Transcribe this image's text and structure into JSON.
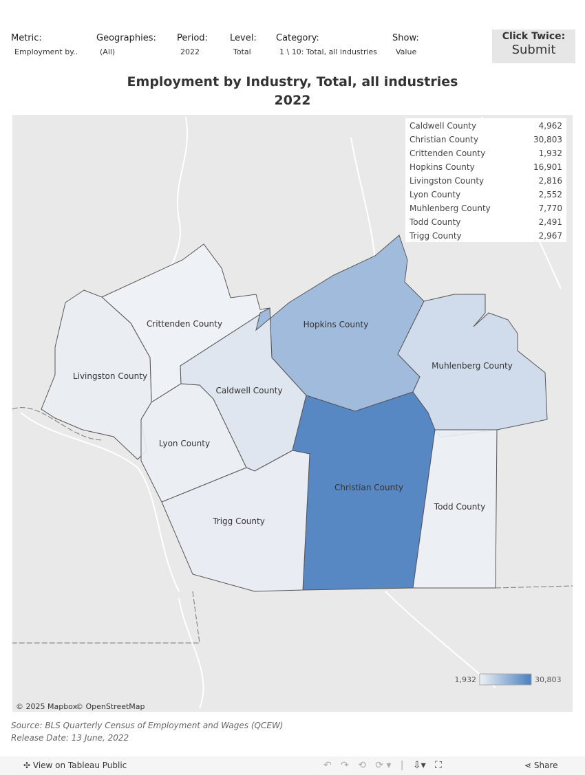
{
  "filters": [
    {
      "label": "Metric:",
      "value": "Employment by.."
    },
    {
      "label": "Geographies:",
      "value": "(All)"
    },
    {
      "label": "Period:",
      "value": "2022"
    },
    {
      "label": "Level:",
      "value": "Total"
    },
    {
      "label": "Category:",
      "value": "1 \\ 10: Total, all industries"
    },
    {
      "label": "Show:",
      "value": "Value"
    }
  ],
  "submit": {
    "hint": "Click Twice:",
    "label": "Submit"
  },
  "title": {
    "line1": "Employment by Industry, Total, all industries",
    "line2": "2022"
  },
  "counties": [
    {
      "name": "Caldwell County",
      "value": 4962,
      "label": "4,962"
    },
    {
      "name": "Christian County",
      "value": 30803,
      "label": "30,803"
    },
    {
      "name": "Crittenden County",
      "value": 1932,
      "label": "1,932"
    },
    {
      "name": "Hopkins County",
      "value": 16901,
      "label": "16,901"
    },
    {
      "name": "Livingston County",
      "value": 2816,
      "label": "2,816"
    },
    {
      "name": "Lyon County",
      "value": 2552,
      "label": "2,552"
    },
    {
      "name": "Muhlenberg County",
      "value": 7770,
      "label": "7,770"
    },
    {
      "name": "Todd County",
      "value": 2491,
      "label": "2,491"
    },
    {
      "name": "Trigg County",
      "value": 2967,
      "label": "2,967"
    }
  ],
  "color_legend": {
    "min": {
      "value": 1932,
      "label": "1,932"
    },
    "max": {
      "value": 30803,
      "label": "30,803"
    },
    "colors": [
      "#eef1f5",
      "#4a7fc0"
    ]
  },
  "attribution": [
    "© 2025 Mapbox",
    "© OpenStreetMap"
  ],
  "source": "Source: BLS Quarterly Census of Employment and Wages (QCEW)",
  "release": "Release Date: 13 June, 2022",
  "toolbar": {
    "view": "View on Tableau Public",
    "share": "Share"
  }
}
